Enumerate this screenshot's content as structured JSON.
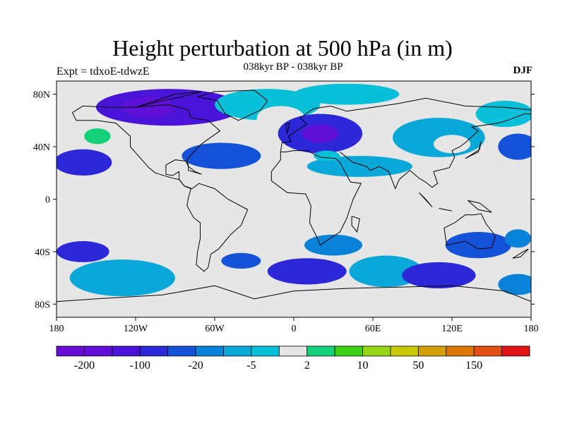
{
  "title": "Height perturbation at 500 hPa (in m)",
  "subtitle": "038kyr BP - 038kyr BP",
  "experiment_label": "Expt = tdxoE-tdwzE",
  "season": "DJF",
  "map": {
    "projection": "cylindrical-equidistant",
    "lon_range": [
      -180,
      180
    ],
    "lat_range": [
      -90,
      90
    ],
    "background_color": "#e6e6e6",
    "lat_ticks": [
      {
        "lat": 80,
        "label": "80N"
      },
      {
        "lat": 40,
        "label": "40N"
      },
      {
        "lat": 0,
        "label": "0"
      },
      {
        "lat": -40,
        "label": "40S"
      },
      {
        "lat": -80,
        "label": "80S"
      }
    ],
    "lon_ticks": [
      {
        "lon": -180,
        "label": "180"
      },
      {
        "lon": -120,
        "label": "120W"
      },
      {
        "lon": -60,
        "label": "60W"
      },
      {
        "lon": 0,
        "label": "0"
      },
      {
        "lon": 60,
        "label": "60E"
      },
      {
        "lon": 120,
        "label": "120E"
      },
      {
        "lon": 180,
        "label": "180"
      }
    ],
    "anomalies": [
      {
        "lon": -150,
        "lat": 47,
        "rx": 22,
        "ry": 13,
        "level": 8
      },
      {
        "lon": -149,
        "lat": 48,
        "rx": 10,
        "ry": 6,
        "level": 9
      },
      {
        "lon": -95,
        "lat": 70,
        "rx": 55,
        "ry": 14,
        "level": 2
      },
      {
        "lon": -110,
        "lat": 70,
        "rx": 20,
        "ry": 8,
        "level": 1
      },
      {
        "lon": -160,
        "lat": 28,
        "rx": 22,
        "ry": 10,
        "level": 3
      },
      {
        "lon": -55,
        "lat": 33,
        "rx": 30,
        "ry": 10,
        "level": 4
      },
      {
        "lon": -20,
        "lat": 72,
        "rx": 40,
        "ry": 12,
        "level": 7
      },
      {
        "lon": -10,
        "lat": 62,
        "rx": 18,
        "ry": 9,
        "level": 8
      },
      {
        "lon": 20,
        "lat": 50,
        "rx": 32,
        "ry": 15,
        "level": 3
      },
      {
        "lon": 20,
        "lat": 50,
        "rx": 14,
        "ry": 7,
        "level": 1
      },
      {
        "lon": 40,
        "lat": 80,
        "rx": 40,
        "ry": 8,
        "level": 7
      },
      {
        "lon": 110,
        "lat": 47,
        "rx": 35,
        "ry": 15,
        "level": 6
      },
      {
        "lon": 120,
        "lat": 42,
        "rx": 14,
        "ry": 7,
        "level": 8
      },
      {
        "lon": 160,
        "lat": 65,
        "rx": 22,
        "ry": 10,
        "level": 7
      },
      {
        "lon": 170,
        "lat": 40,
        "rx": 15,
        "ry": 10,
        "level": 4
      },
      {
        "lon": 50,
        "lat": 25,
        "rx": 40,
        "ry": 8,
        "level": 6
      },
      {
        "lon": 25,
        "lat": 33,
        "rx": 10,
        "ry": 4,
        "level": 7
      },
      {
        "lon": -130,
        "lat": -60,
        "rx": 40,
        "ry": 14,
        "level": 6
      },
      {
        "lon": -160,
        "lat": -40,
        "rx": 20,
        "ry": 8,
        "level": 3
      },
      {
        "lon": -40,
        "lat": -47,
        "rx": 15,
        "ry": 6,
        "level": 4
      },
      {
        "lon": 30,
        "lat": -35,
        "rx": 22,
        "ry": 8,
        "level": 5
      },
      {
        "lon": 10,
        "lat": -55,
        "rx": 30,
        "ry": 10,
        "level": 3
      },
      {
        "lon": 70,
        "lat": -55,
        "rx": 28,
        "ry": 12,
        "level": 6
      },
      {
        "lon": 110,
        "lat": -58,
        "rx": 28,
        "ry": 10,
        "level": 3
      },
      {
        "lon": 140,
        "lat": -35,
        "rx": 25,
        "ry": 10,
        "level": 4
      },
      {
        "lon": 170,
        "lat": -30,
        "rx": 10,
        "ry": 7,
        "level": 5
      },
      {
        "lon": 170,
        "lat": -65,
        "rx": 15,
        "ry": 8,
        "level": 5
      }
    ]
  },
  "colorbar": {
    "colors": [
      "#6a0dd4",
      "#5e10d6",
      "#4a14d8",
      "#2c28d8",
      "#1452d8",
      "#0a82d8",
      "#0aa8d8",
      "#0ac0d8",
      "#e6e6e6",
      "#14d27a",
      "#3cd214",
      "#96d614",
      "#c8c80a",
      "#d2a00a",
      "#dc780a",
      "#e05014",
      "#e01414"
    ],
    "labels": [
      {
        "after_index": 0,
        "text": "-200"
      },
      {
        "after_index": 2,
        "text": "-100"
      },
      {
        "after_index": 4,
        "text": "-20"
      },
      {
        "after_index": 6,
        "text": "-5"
      },
      {
        "after_index": 8,
        "text": "2"
      },
      {
        "after_index": 10,
        "text": "10"
      },
      {
        "after_index": 12,
        "text": "50"
      },
      {
        "after_index": 14,
        "text": "150"
      }
    ]
  }
}
